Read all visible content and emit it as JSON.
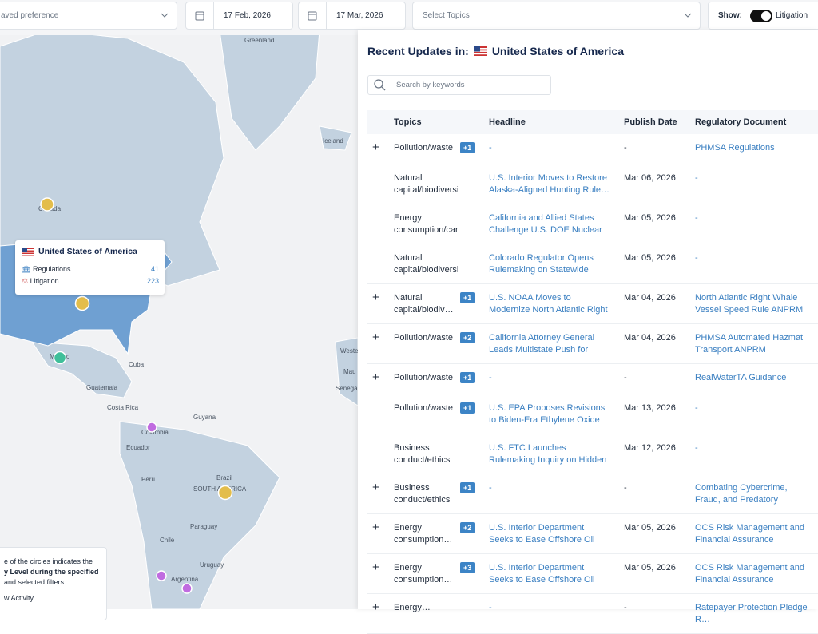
{
  "filters": {
    "preference": "aved preference",
    "start_date": "17 Feb, 2026",
    "end_date": "17 Mar, 2026",
    "topics_placeholder": "Select Topics",
    "show_label": "Show:",
    "toggle_label": "Litigation"
  },
  "map": {
    "labels": [
      "Greenland",
      "Iceland",
      "Canada",
      "Mexico",
      "Cuba",
      "Guatemala",
      "Costa Rica",
      "Guyana",
      "Colombia",
      "Ecuador",
      "Peru",
      "Brazil",
      "SOUTH AMERICA",
      "Paraguay",
      "Chile",
      "Uruguay",
      "Argentina",
      "Wester",
      "Mau",
      "Senegal"
    ],
    "tooltip": {
      "country": "United States of America",
      "rows": [
        {
          "label": "Regulations",
          "count": 41
        },
        {
          "label": "Litigation",
          "count": 223
        }
      ]
    },
    "legend": [
      "e of the circles indicates the",
      "y Level during the specified",
      "and selected filters",
      "w Activity"
    ]
  },
  "panel": {
    "title": "Recent Updates in:",
    "country": "United States of America",
    "search_placeholder": "Search by keywords",
    "columns": [
      "Topics",
      "Headline",
      "Publish Date",
      "Regulatory Document"
    ],
    "rows": [
      {
        "expander": "+",
        "topic": "Pollution/waste",
        "badge": "+1",
        "headline": "-",
        "date": "-",
        "document": "PHMSA Regulations"
      },
      {
        "topic": "Natural capital/biodiversity",
        "headline": "U.S. Interior Moves to Restore Alaska-Aligned Hunting Rule…",
        "date": "Mar 06, 2026",
        "document": "-"
      },
      {
        "topic": "Energy consumption/carb…",
        "headline": "California and Allied States Challenge U.S. DOE Nuclear Re…",
        "date": "Mar 05, 2026",
        "document": "-"
      },
      {
        "topic": "Natural capital/biodiversity",
        "headline": "Colorado Regulator Opens Rulemaking on Statewide Com…",
        "date": "Mar 05, 2026",
        "document": "-"
      },
      {
        "expander": "+",
        "topic": "Natural capital/biodiv…",
        "badge": "+1",
        "headline": "U.S. NOAA Moves to Modernize North Atlantic Right Whale V…",
        "date": "Mar 04, 2026",
        "document": "North Atlantic Right Whale Vessel Speed Rule ANPRM"
      },
      {
        "expander": "+",
        "topic": "Pollution/waste",
        "badge": "+2",
        "headline": "California Attorney General Leads Multistate Push for Cauti…",
        "date": "Mar 04, 2026",
        "document": "PHMSA Automated Hazmat Transport ANPRM"
      },
      {
        "expander": "+",
        "topic": "Pollution/waste",
        "badge": "+1",
        "headline": "-",
        "date": "-",
        "document": "RealWaterTA Guidance"
      },
      {
        "topic": "Pollution/waste",
        "badge": "+1",
        "headline": "U.S. EPA Proposes Revisions to Biden-Era Ethylene Oxide Ste…",
        "date": "Mar 13, 2026",
        "document": "-"
      },
      {
        "topic": "Business conduct/ethics",
        "headline": "U.S. FTC Launches Rulemaking Inquiry on Hidden Rental Hou…",
        "date": "Mar 12, 2026",
        "document": "-"
      },
      {
        "expander": "+",
        "topic": "Business conduct/ethics",
        "badge": "+1",
        "headline": "-",
        "date": "-",
        "document": "Combating Cybercrime, Fraud, and Predatory Schemes A…"
      },
      {
        "expander": "+",
        "topic": "Energy consumption…",
        "badge": "+2",
        "headline": "U.S. Interior Department Seeks to Ease Offshore Oil Financial…",
        "date": "Mar 05, 2026",
        "document": "OCS Risk Management and Financial Assurance Proposed…"
      },
      {
        "expander": "+",
        "topic": "Energy consumption…",
        "badge": "+3",
        "headline": "U.S. Interior Department Seeks to Ease Offshore Oil Financial…",
        "date": "Mar 05, 2026",
        "document": "OCS Risk Management and Financial Assurance Proposed…"
      },
      {
        "expander": "+",
        "topic": "Energy…",
        "headline": "-",
        "date": "-",
        "document": "Ratepayer Protection Pledge R…"
      }
    ]
  }
}
